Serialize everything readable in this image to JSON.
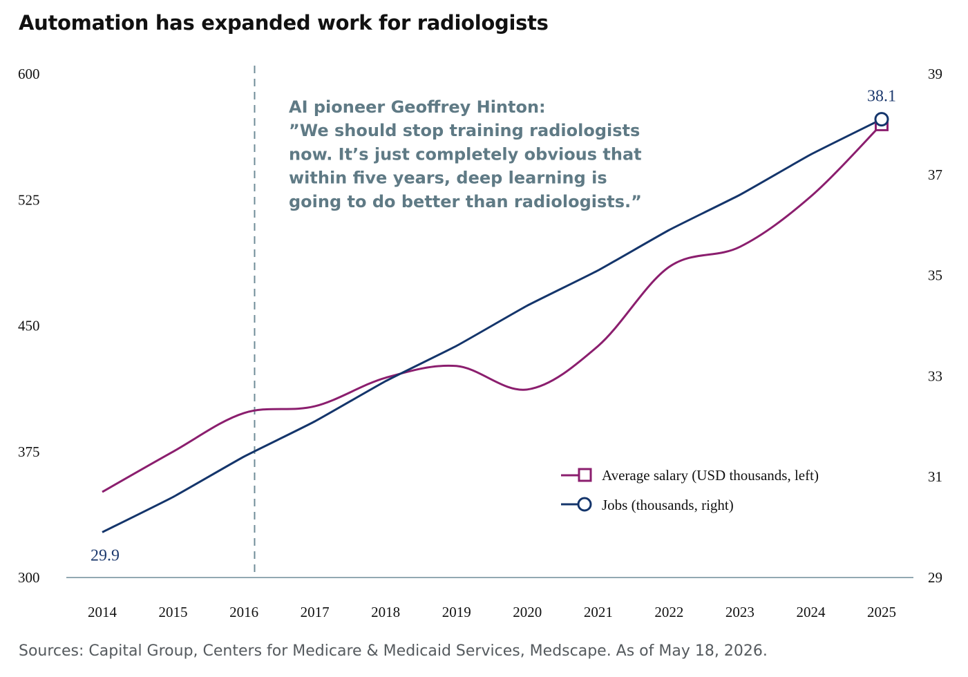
{
  "title": "Automation has expanded work for radiologists",
  "source": "Sources: Capital Group, Centers for Medicare & Medicaid Services, Medscape. As of May 18, 2026.",
  "chart_data": {
    "type": "line",
    "categories": [
      "2014",
      "2015",
      "2016",
      "2017",
      "2018",
      "2019",
      "2020",
      "2021",
      "2022",
      "2023",
      "2024",
      "2025"
    ],
    "series": [
      {
        "name": "Average salary (USD thousands, left)",
        "axis": "left",
        "color": "#8b1e6e",
        "marker": "square",
        "values": [
          351,
          375,
          398,
          402,
          419,
          426,
          412,
          438,
          485,
          497,
          527,
          570
        ]
      },
      {
        "name": "Jobs (thousands, right)",
        "axis": "right",
        "color": "#14356b",
        "marker": "circle",
        "values": [
          29.9,
          30.6,
          31.4,
          32.1,
          32.9,
          33.6,
          34.4,
          35.1,
          35.9,
          36.6,
          37.4,
          38.1
        ]
      }
    ],
    "y_left": {
      "ticks": [
        "600",
        "525",
        "450",
        "375",
        "300"
      ],
      "range": [
        300,
        600
      ]
    },
    "y_right": {
      "ticks": [
        "39",
        "37",
        "35",
        "33",
        "31",
        "29"
      ],
      "range": [
        29,
        39
      ]
    },
    "data_labels": {
      "start": "29.9",
      "end": "38.1"
    },
    "annotation_lines": [
      "AI pioneer Geoffrey Hinton:",
      "”We should stop training radiologists",
      "now. It’s just completely obvious that",
      "within five years, deep learning is",
      "going to do better than radiologists.”"
    ],
    "annotation_year": 2016.15,
    "annotation_color": "#5f7a85",
    "legend_position": "bottom-right",
    "grid": false
  }
}
